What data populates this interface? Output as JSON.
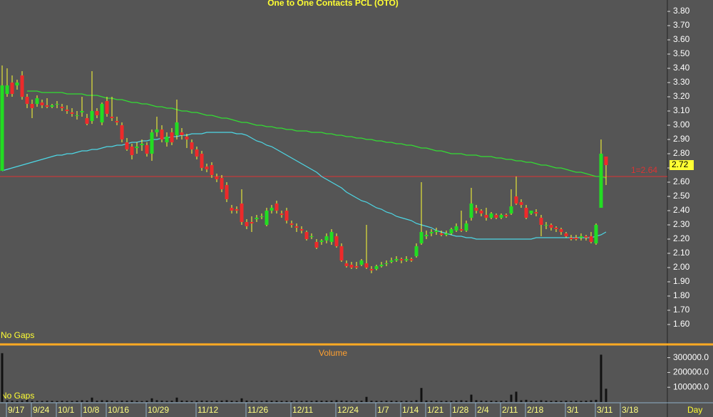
{
  "chart_data": [
    {
      "type": "candlestick",
      "title": "One to One Contacts PCL (OTO)",
      "annotation": "No Gaps",
      "up_color": "#22dd22",
      "down_color": "#ee2a2a",
      "wick_color": "#ffff33",
      "open": [
        2.68,
        3.22,
        3.3,
        3.28,
        3.35,
        3.2,
        3.15,
        3.15,
        3.16,
        3.14,
        3.13,
        3.15,
        3.13,
        3.11,
        3.09,
        3.07,
        3.09,
        3.05,
        3.03,
        3.1,
        3.02,
        3.17,
        3.06,
        3.03,
        3.0,
        2.88,
        2.85,
        2.84,
        2.86,
        2.86,
        2.8,
        2.95,
        2.97,
        2.88,
        2.95,
        2.93,
        2.95,
        2.92,
        2.88,
        2.83,
        2.8,
        2.71,
        2.72,
        2.64,
        2.63,
        2.58,
        2.42,
        2.41,
        2.45,
        2.32,
        2.32,
        2.34,
        2.36,
        2.3,
        2.4,
        2.45,
        2.38,
        2.4,
        2.31,
        2.29,
        2.27,
        2.25,
        2.22,
        2.18,
        2.18,
        2.19,
        2.18,
        2.22,
        2.15,
        2.03,
        2.02,
        2.01,
        2.02,
        2.03,
        1.99,
        1.99,
        2.01,
        2.03,
        2.04,
        2.05,
        2.06,
        2.05,
        2.06,
        2.08,
        2.17,
        2.22,
        2.24,
        2.25,
        2.24,
        2.23,
        2.24,
        2.26,
        2.27,
        2.26,
        2.35,
        2.42,
        2.4,
        2.37,
        2.35,
        2.37,
        2.35,
        2.37,
        2.38,
        2.5,
        2.46,
        2.42,
        2.38,
        2.39,
        2.35,
        2.3,
        2.3,
        2.28,
        2.27,
        2.24,
        2.21,
        2.21,
        2.21,
        2.22,
        2.22,
        2.17,
        2.42,
        2.78,
        null,
        null,
        null
      ],
      "high": [
        3.42,
        3.4,
        3.35,
        3.32,
        3.38,
        3.22,
        3.18,
        3.21,
        3.18,
        3.19,
        3.15,
        3.17,
        3.15,
        3.14,
        3.12,
        3.1,
        3.2,
        3.08,
        3.38,
        3.12,
        3.16,
        3.2,
        3.2,
        3.06,
        3.02,
        2.91,
        2.87,
        2.88,
        2.9,
        2.88,
        2.97,
        3.06,
        3.0,
        2.95,
        2.98,
        3.18,
        2.98,
        2.94,
        2.9,
        2.85,
        2.82,
        2.73,
        2.74,
        2.66,
        2.65,
        2.6,
        2.44,
        2.43,
        2.55,
        2.34,
        2.36,
        2.37,
        2.38,
        2.42,
        2.44,
        2.47,
        2.4,
        2.42,
        2.33,
        2.31,
        2.29,
        2.26,
        2.24,
        2.2,
        2.2,
        2.24,
        2.27,
        2.24,
        2.17,
        2.05,
        2.04,
        2.04,
        2.06,
        2.3,
        2.01,
        2.02,
        2.04,
        2.05,
        2.07,
        2.08,
        2.07,
        2.08,
        2.07,
        2.17,
        2.6,
        2.26,
        2.27,
        2.28,
        2.26,
        2.26,
        2.28,
        2.31,
        2.4,
        2.33,
        2.56,
        2.44,
        2.41,
        2.42,
        2.39,
        2.38,
        2.38,
        2.38,
        2.55,
        2.64,
        2.48,
        2.44,
        2.4,
        2.41,
        2.37,
        2.32,
        2.31,
        2.29,
        2.28,
        2.25,
        2.23,
        2.23,
        2.24,
        2.23,
        2.25,
        2.31,
        2.9,
        2.78,
        null,
        null,
        null
      ],
      "low": [
        2.68,
        3.2,
        3.2,
        3.25,
        3.18,
        3.12,
        3.05,
        3.13,
        3.12,
        3.12,
        3.12,
        3.12,
        3.1,
        3.08,
        3.06,
        3.04,
        3.06,
        3.0,
        3.01,
        3.05,
        3.0,
        3.06,
        3.03,
        3.0,
        2.88,
        2.82,
        2.76,
        2.8,
        2.82,
        2.78,
        2.75,
        2.92,
        2.88,
        2.85,
        2.86,
        2.9,
        2.9,
        2.84,
        2.8,
        2.76,
        2.68,
        2.67,
        2.63,
        2.6,
        2.53,
        2.46,
        2.38,
        2.38,
        2.3,
        2.27,
        2.25,
        2.32,
        2.34,
        2.29,
        2.38,
        2.38,
        2.35,
        2.31,
        2.28,
        2.25,
        2.24,
        2.19,
        2.2,
        2.13,
        2.16,
        2.17,
        2.16,
        2.14,
        2.04,
        2.0,
        1.99,
        1.99,
        2.01,
        1.99,
        1.96,
        1.98,
        2.0,
        2.01,
        2.03,
        2.04,
        2.03,
        2.04,
        2.04,
        2.07,
        2.16,
        2.2,
        2.22,
        2.23,
        2.22,
        2.22,
        2.23,
        2.25,
        2.25,
        2.25,
        2.33,
        2.38,
        2.36,
        2.33,
        2.34,
        2.34,
        2.34,
        2.35,
        2.37,
        2.44,
        2.42,
        2.34,
        2.37,
        2.36,
        2.22,
        2.27,
        2.26,
        2.25,
        2.23,
        2.21,
        2.19,
        2.19,
        2.19,
        2.19,
        2.17,
        2.16,
        2.42,
        2.58,
        null,
        null,
        null
      ],
      "close": [
        3.28,
        3.28,
        3.22,
        3.3,
        3.2,
        3.15,
        3.12,
        3.19,
        3.14,
        3.13,
        3.14,
        3.15,
        3.12,
        3.1,
        3.08,
        3.07,
        3.1,
        3.01,
        3.1,
        3.07,
        3.15,
        3.08,
        3.05,
        3.02,
        2.9,
        2.83,
        2.79,
        2.85,
        2.87,
        2.8,
        2.95,
        2.97,
        2.9,
        2.92,
        2.88,
        3.02,
        2.93,
        2.9,
        2.83,
        2.78,
        2.7,
        2.69,
        2.65,
        2.62,
        2.55,
        2.48,
        2.4,
        2.4,
        2.32,
        2.29,
        2.31,
        2.35,
        2.36,
        2.4,
        2.42,
        2.4,
        2.37,
        2.33,
        2.3,
        2.28,
        2.26,
        2.2,
        2.22,
        2.14,
        2.19,
        2.22,
        2.25,
        2.15,
        2.05,
        2.01,
        2.0,
        2.0,
        2.05,
        2.0,
        1.98,
        2.01,
        2.02,
        2.03,
        2.05,
        2.06,
        2.05,
        2.06,
        2.05,
        2.15,
        2.25,
        2.23,
        2.25,
        2.26,
        2.23,
        2.24,
        2.27,
        2.29,
        2.26,
        2.31,
        2.45,
        2.4,
        2.38,
        2.35,
        2.38,
        2.35,
        2.37,
        2.36,
        2.43,
        2.45,
        2.44,
        2.35,
        2.4,
        2.38,
        2.3,
        2.3,
        2.28,
        2.27,
        2.25,
        2.22,
        2.2,
        2.2,
        2.22,
        2.21,
        2.18,
        2.3,
        2.8,
        2.72,
        null,
        null,
        null
      ],
      "overlays": [
        {
          "color": "#33dd33",
          "values": [
            null,
            null,
            null,
            null,
            null,
            3.24,
            3.24,
            3.24,
            3.23,
            3.23,
            3.23,
            3.23,
            3.23,
            3.22,
            3.22,
            3.22,
            3.22,
            3.21,
            3.21,
            3.21,
            3.2,
            3.19,
            3.19,
            3.18,
            3.18,
            3.17,
            3.16,
            3.16,
            3.15,
            3.15,
            3.14,
            3.13,
            3.13,
            3.12,
            3.12,
            3.11,
            3.1,
            3.1,
            3.09,
            3.09,
            3.08,
            3.07,
            3.07,
            3.06,
            3.05,
            3.05,
            3.04,
            3.03,
            3.02,
            3.02,
            3.01,
            3.0,
            3.0,
            2.99,
            2.99,
            2.98,
            2.98,
            2.97,
            2.97,
            2.96,
            2.96,
            2.96,
            2.95,
            2.95,
            2.95,
            2.94,
            2.94,
            2.93,
            2.93,
            2.92,
            2.92,
            2.91,
            2.91,
            2.9,
            2.9,
            2.89,
            2.89,
            2.88,
            2.88,
            2.87,
            2.87,
            2.86,
            2.86,
            2.85,
            2.84,
            2.84,
            2.83,
            2.82,
            2.82,
            2.81,
            2.8,
            2.8,
            2.8,
            2.79,
            2.79,
            2.79,
            2.78,
            2.78,
            2.78,
            2.77,
            2.77,
            2.76,
            2.76,
            2.75,
            2.75,
            2.74,
            2.74,
            2.73,
            2.72,
            2.72,
            2.71,
            2.7,
            2.7,
            2.69,
            2.68,
            2.67,
            2.67,
            2.66,
            2.65,
            2.64,
            2.64,
            2.63,
            null,
            null,
            null
          ]
        },
        {
          "color": "#4dd8e6",
          "values": [
            2.68,
            2.69,
            2.7,
            2.71,
            2.72,
            2.73,
            2.74,
            2.75,
            2.76,
            2.77,
            2.78,
            2.79,
            2.79,
            2.8,
            2.8,
            2.81,
            2.82,
            2.82,
            2.83,
            2.83,
            2.84,
            2.85,
            2.85,
            2.86,
            2.86,
            2.87,
            2.88,
            2.88,
            2.89,
            2.89,
            2.9,
            2.9,
            2.91,
            2.91,
            2.92,
            2.92,
            2.93,
            2.93,
            2.94,
            2.94,
            2.94,
            2.95,
            2.95,
            2.95,
            2.95,
            2.95,
            2.95,
            2.94,
            2.94,
            2.93,
            2.91,
            2.89,
            2.88,
            2.86,
            2.85,
            2.83,
            2.81,
            2.79,
            2.77,
            2.75,
            2.73,
            2.71,
            2.69,
            2.67,
            2.64,
            2.62,
            2.6,
            2.58,
            2.56,
            2.53,
            2.51,
            2.49,
            2.47,
            2.46,
            2.44,
            2.42,
            2.41,
            2.39,
            2.38,
            2.36,
            2.35,
            2.34,
            2.33,
            2.31,
            2.3,
            2.29,
            2.28,
            2.26,
            2.25,
            2.24,
            2.23,
            2.22,
            2.22,
            2.21,
            2.21,
            2.2,
            2.2,
            2.2,
            2.2,
            2.2,
            2.2,
            2.2,
            2.2,
            2.2,
            2.2,
            2.2,
            2.2,
            2.21,
            2.21,
            2.21,
            2.21,
            2.21,
            2.21,
            2.21,
            2.21,
            2.21,
            2.21,
            2.21,
            2.21,
            2.22,
            2.23,
            2.25,
            null,
            null,
            null
          ]
        }
      ],
      "reference_line": {
        "value": 2.64,
        "label": "1=2.64",
        "color": "#dd3333"
      },
      "last_price": 2.72,
      "ylim": [
        1.465,
        3.88
      ],
      "yticks": [
        {
          "value": 3.8,
          "label": "3.80"
        },
        {
          "value": 3.7,
          "label": "3.70"
        },
        {
          "value": 3.6,
          "label": "3.60"
        },
        {
          "value": 3.5,
          "label": "3.50"
        },
        {
          "value": 3.4,
          "label": "3.40"
        },
        {
          "value": 3.3,
          "label": "3.30"
        },
        {
          "value": 3.2,
          "label": "3.20"
        },
        {
          "value": 3.1,
          "label": "3.10"
        },
        {
          "value": 3.0,
          "label": "3.00"
        },
        {
          "value": 2.9,
          "label": "2.90"
        },
        {
          "value": 2.8,
          "label": "2.80"
        },
        {
          "value": 2.7,
          "label": "2.70"
        },
        {
          "value": 2.6,
          "label": "2.60"
        },
        {
          "value": 2.5,
          "label": "2.50"
        },
        {
          "value": 2.4,
          "label": "2.40"
        },
        {
          "value": 2.3,
          "label": "2.30"
        },
        {
          "value": 2.2,
          "label": "2.20"
        },
        {
          "value": 2.1,
          "label": "2.10"
        },
        {
          "value": 2.0,
          "label": "2.00"
        },
        {
          "value": 1.9,
          "label": "1.90"
        },
        {
          "value": 1.8,
          "label": "1.80"
        },
        {
          "value": 1.7,
          "label": "1.70"
        },
        {
          "value": 1.6,
          "label": "1.60"
        }
      ]
    },
    {
      "type": "bar",
      "title": "Volume",
      "annotation": "No Gaps",
      "x_label": "Day",
      "color": "#111111",
      "categories": [
        null,
        "9/17",
        null,
        null,
        null,
        null,
        "9/24",
        null,
        null,
        null,
        null,
        "10/1",
        null,
        null,
        null,
        null,
        "10/8",
        null,
        null,
        null,
        null,
        "10/16",
        null,
        null,
        null,
        null,
        null,
        null,
        null,
        "10/29",
        null,
        null,
        null,
        null,
        null,
        null,
        null,
        null,
        null,
        "11/12",
        null,
        null,
        null,
        null,
        null,
        null,
        null,
        null,
        null,
        "11/26",
        null,
        null,
        null,
        null,
        null,
        null,
        null,
        null,
        "12/11",
        null,
        null,
        null,
        null,
        null,
        null,
        null,
        null,
        "12/24",
        null,
        null,
        null,
        null,
        null,
        null,
        null,
        "1/7",
        null,
        null,
        null,
        null,
        "1/14",
        null,
        null,
        null,
        null,
        "1/21",
        null,
        null,
        null,
        null,
        "1/28",
        null,
        null,
        null,
        null,
        "2/4",
        null,
        null,
        null,
        null,
        "2/11",
        null,
        null,
        null,
        null,
        "2/18",
        null,
        null,
        null,
        null,
        null,
        null,
        null,
        "3/1",
        null,
        null,
        null,
        null,
        null,
        "3/11",
        null,
        null,
        null,
        null,
        "3/18"
      ],
      "values": [
        330000,
        12000,
        10000,
        9000,
        11000,
        15000,
        9000,
        8000,
        8000,
        9000,
        8000,
        7000,
        9000,
        8000,
        8000,
        9000,
        12000,
        10000,
        30000,
        9000,
        12000,
        11000,
        9000,
        8000,
        10000,
        9000,
        11000,
        8000,
        7000,
        9000,
        25000,
        12000,
        10000,
        8000,
        9000,
        30000,
        10000,
        9000,
        8000,
        9000,
        10000,
        9000,
        8000,
        9000,
        10000,
        12000,
        9000,
        8000,
        25000,
        10000,
        9000,
        8000,
        8000,
        10000,
        9000,
        9000,
        8000,
        8000,
        9000,
        9000,
        8000,
        9000,
        8000,
        10000,
        9000,
        9000,
        10000,
        12000,
        10000,
        9000,
        8000,
        8000,
        9000,
        35000,
        9000,
        8000,
        8000,
        9000,
        9000,
        8000,
        8000,
        9000,
        8000,
        12000,
        95000,
        10000,
        9000,
        9000,
        8000,
        8000,
        9000,
        10000,
        12000,
        9000,
        50000,
        12000,
        10000,
        9000,
        9000,
        8000,
        9000,
        9000,
        50000,
        70000,
        12000,
        15000,
        9000,
        9000,
        12000,
        9000,
        8000,
        9000,
        8000,
        9000,
        8000,
        9000,
        8000,
        9000,
        12000,
        15000,
        320000,
        90000,
        null,
        null,
        null
      ],
      "ylim": [
        0,
        375000
      ],
      "yticks": [
        {
          "value": 300000,
          "label": "300000.0"
        },
        {
          "value": 200000,
          "label": "200000.0"
        },
        {
          "value": 100000,
          "label": "100000.0"
        }
      ]
    }
  ]
}
